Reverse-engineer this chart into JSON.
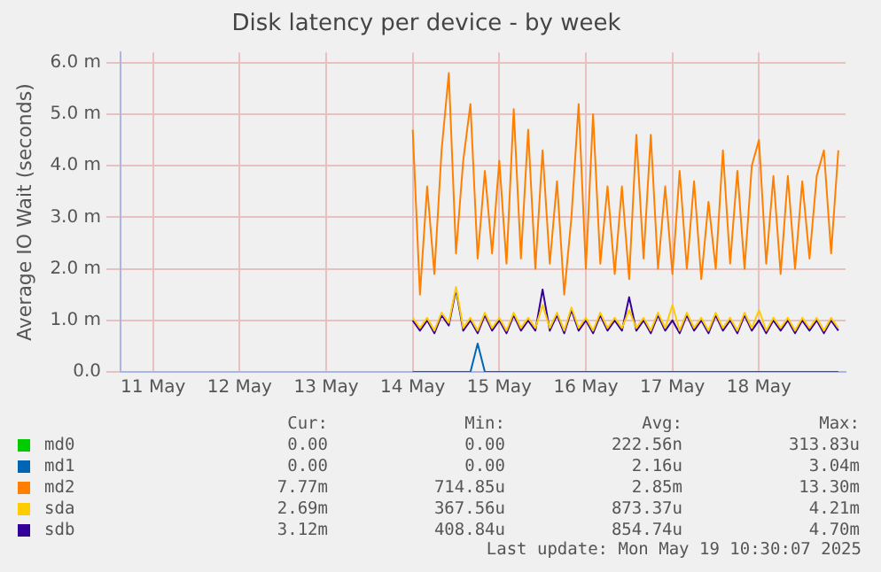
{
  "chart_data": {
    "type": "line",
    "title": "Disk latency per device - by week",
    "ylabel": "Average IO Wait (seconds)",
    "x": [
      "2025-05-14T12:00",
      "2025-05-14T14:00",
      "2025-05-14T16:00",
      "2025-05-14T18:00",
      "2025-05-14T20:00",
      "2025-05-14T22:00",
      "2025-05-15T00:00",
      "2025-05-15T02:00",
      "2025-05-15T04:00",
      "2025-05-15T06:00",
      "2025-05-15T08:00",
      "2025-05-15T10:00",
      "2025-05-15T12:00",
      "2025-05-15T14:00",
      "2025-05-15T16:00",
      "2025-05-15T18:00",
      "2025-05-15T20:00",
      "2025-05-15T22:00",
      "2025-05-16T00:00",
      "2025-05-16T02:00",
      "2025-05-16T04:00",
      "2025-05-16T06:00",
      "2025-05-16T08:00",
      "2025-05-16T10:00",
      "2025-05-16T12:00",
      "2025-05-16T14:00",
      "2025-05-16T16:00",
      "2025-05-16T18:00",
      "2025-05-16T20:00",
      "2025-05-16T22:00",
      "2025-05-17T00:00",
      "2025-05-17T02:00",
      "2025-05-17T04:00",
      "2025-05-17T06:00",
      "2025-05-17T08:00",
      "2025-05-17T10:00",
      "2025-05-17T12:00",
      "2025-05-17T14:00",
      "2025-05-17T16:00",
      "2025-05-17T18:00",
      "2025-05-17T20:00",
      "2025-05-17T22:00",
      "2025-05-18T00:00",
      "2025-05-18T02:00",
      "2025-05-18T04:00",
      "2025-05-18T06:00",
      "2025-05-18T08:00",
      "2025-05-18T10:00",
      "2025-05-18T12:00",
      "2025-05-18T14:00",
      "2025-05-18T16:00",
      "2025-05-18T18:00",
      "2025-05-18T20:00",
      "2025-05-18T22:00",
      "2025-05-19T00:00",
      "2025-05-19T02:00",
      "2025-05-19T04:00",
      "2025-05-19T06:00",
      "2025-05-19T08:00",
      "2025-05-19T10:00"
    ],
    "series": [
      {
        "name": "md0",
        "color": "#00cc00",
        "values": [
          null,
          null,
          null,
          null,
          null,
          null,
          null,
          null,
          null,
          null,
          null,
          null,
          null,
          null,
          null,
          null,
          null,
          null,
          null,
          null,
          null,
          null,
          null,
          null,
          null,
          null,
          null,
          null,
          null,
          null,
          null,
          null,
          null,
          null,
          null,
          null,
          null,
          null,
          null,
          null,
          null,
          null,
          null,
          null,
          null,
          null,
          null,
          null,
          null,
          null,
          null,
          null,
          null,
          null,
          null,
          null,
          null,
          null,
          null,
          null
        ]
      },
      {
        "name": "md1",
        "color": "#0066b3",
        "values": [
          0,
          0,
          0,
          0,
          0,
          0,
          0,
          0,
          0,
          0.55,
          0,
          0,
          0,
          0,
          0,
          0,
          0,
          0,
          0,
          0,
          0,
          0,
          0,
          0,
          0,
          0,
          0,
          0,
          0,
          0,
          0,
          0,
          0,
          0,
          0,
          0,
          0,
          0,
          0,
          0,
          0,
          0,
          0,
          0,
          0,
          0,
          0,
          0,
          0,
          0,
          0,
          0,
          0,
          0,
          0,
          0,
          0,
          0,
          0,
          0
        ]
      },
      {
        "name": "md2",
        "color": "#ff8000",
        "values": [
          4.7,
          1.5,
          3.6,
          1.9,
          4.3,
          5.8,
          2.3,
          4.1,
          5.2,
          2.2,
          3.9,
          2.3,
          4.1,
          2.1,
          5.1,
          2.2,
          4.7,
          2.0,
          4.3,
          2.1,
          3.7,
          1.5,
          3.0,
          5.2,
          2.0,
          5.0,
          2.1,
          3.6,
          1.9,
          3.6,
          1.8,
          4.6,
          2.2,
          4.6,
          2.0,
          3.6,
          1.9,
          3.9,
          2.0,
          3.7,
          1.8,
          3.3,
          2.0,
          4.3,
          2.1,
          3.9,
          2.0,
          4.0,
          4.5,
          2.1,
          3.8,
          1.9,
          3.8,
          2.0,
          3.7,
          2.2,
          3.8,
          4.3,
          2.3,
          4.3
        ]
      },
      {
        "name": "sda",
        "color": "#ffcc00",
        "values": [
          1.05,
          0.85,
          1.05,
          0.8,
          1.15,
          0.95,
          1.65,
          0.85,
          1.05,
          0.8,
          1.15,
          0.85,
          1.05,
          0.8,
          1.15,
          0.85,
          1.05,
          0.85,
          1.3,
          0.85,
          1.15,
          0.8,
          1.25,
          0.85,
          1.05,
          0.8,
          1.15,
          0.85,
          1.05,
          0.85,
          1.2,
          0.85,
          1.05,
          0.8,
          1.15,
          0.85,
          1.3,
          0.8,
          1.15,
          0.85,
          1.05,
          0.8,
          1.15,
          0.85,
          1.05,
          0.8,
          1.15,
          0.85,
          1.2,
          0.8,
          1.05,
          0.85,
          1.05,
          0.8,
          1.05,
          0.85,
          1.05,
          0.8,
          1.05,
          0.85
        ]
      },
      {
        "name": "sdb",
        "color": "#330099",
        "values": [
          1.0,
          0.8,
          1.0,
          0.75,
          1.1,
          0.9,
          1.6,
          0.8,
          1.0,
          0.75,
          1.1,
          0.8,
          1.0,
          0.75,
          1.1,
          0.8,
          1.0,
          0.8,
          1.6,
          0.8,
          1.1,
          0.75,
          1.2,
          0.8,
          1.0,
          0.75,
          1.1,
          0.8,
          1.0,
          0.8,
          1.45,
          0.8,
          1.0,
          0.75,
          1.1,
          0.8,
          1.0,
          0.75,
          1.1,
          0.8,
          1.0,
          0.75,
          1.1,
          0.8,
          1.0,
          0.75,
          1.1,
          0.8,
          1.0,
          0.75,
          1.0,
          0.8,
          1.0,
          0.75,
          1.0,
          0.8,
          1.0,
          0.75,
          1.0,
          0.8
        ]
      }
    ],
    "xlim": [
      "2025-05-11T03:00",
      "2025-05-19T12:00"
    ],
    "xticks": [
      {
        "value": "2025-05-11T12:00",
        "label": "11 May"
      },
      {
        "value": "2025-05-12T12:00",
        "label": "12 May"
      },
      {
        "value": "2025-05-13T12:00",
        "label": "13 May"
      },
      {
        "value": "2025-05-14T12:00",
        "label": "14 May"
      },
      {
        "value": "2025-05-15T12:00",
        "label": "15 May"
      },
      {
        "value": "2025-05-16T12:00",
        "label": "16 May"
      },
      {
        "value": "2025-05-17T12:00",
        "label": "17 May"
      },
      {
        "value": "2025-05-18T12:00",
        "label": "18 May"
      }
    ],
    "ylim": [
      0,
      6.2
    ],
    "yticks": [
      {
        "value": 0,
        "label": "0.0"
      },
      {
        "value": 1,
        "label": "1.0 m"
      },
      {
        "value": 2,
        "label": "2.0 m"
      },
      {
        "value": 3,
        "label": "3.0 m"
      },
      {
        "value": 4,
        "label": "4.0 m"
      },
      {
        "value": 5,
        "label": "5.0 m"
      },
      {
        "value": 6,
        "label": "6.0 m"
      }
    ],
    "grid": true,
    "legend": "bottom",
    "marker": "none",
    "line_style": "solid",
    "annotations": [
      "Cur:",
      "Min:",
      "Avg:",
      "Max:",
      "0.00",
      "0.00",
      "222.56n",
      "313.83u",
      "0.00",
      "0.00",
      "2.16u",
      "3.04m",
      "7.77m",
      "714.85u",
      "2.85m",
      "13.30m",
      "2.69m",
      "367.56u",
      "873.37u",
      "4.21m",
      "3.12m",
      "408.84u",
      "854.74u",
      "4.70m",
      "Last update: Mon May 19 10:30:07 2025"
    ]
  }
}
